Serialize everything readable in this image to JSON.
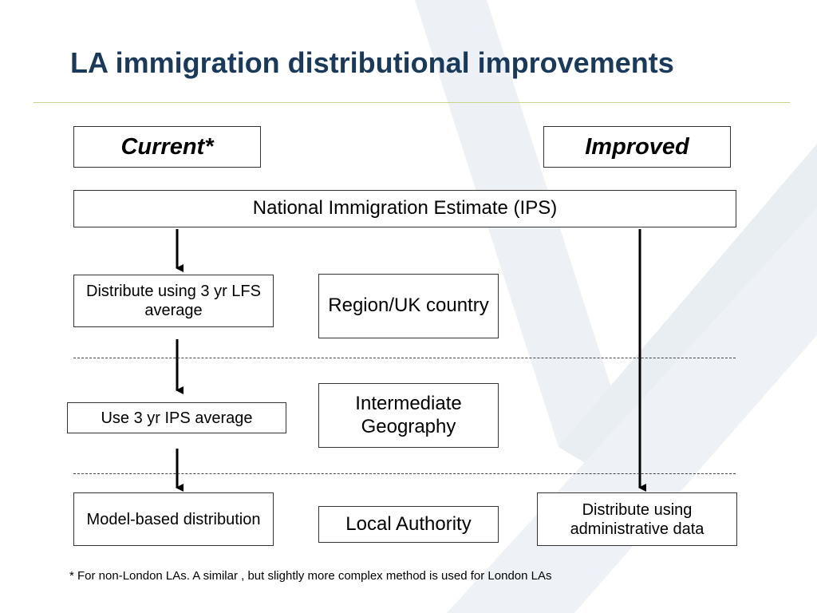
{
  "title": "LA immigration distributional improvements",
  "headers": {
    "current": "Current*",
    "improved": "Improved"
  },
  "national_estimate": "National Immigration Estimate (IPS)",
  "current_steps": [
    "Distribute using 3 yr LFS average",
    "Use 3 yr IPS average",
    "Model-based distribution"
  ],
  "geography_levels": [
    "Region/UK country",
    "Intermediate Geography",
    "Local Authority"
  ],
  "improved_step": "Distribute using administrative data",
  "footnote": "* For non-London LAs.  A similar , but slightly more complex method is used for London LAs",
  "colors": {
    "title": "#1a3a5c",
    "rule": "#c8d48a",
    "watermark": "#e9eef3"
  }
}
